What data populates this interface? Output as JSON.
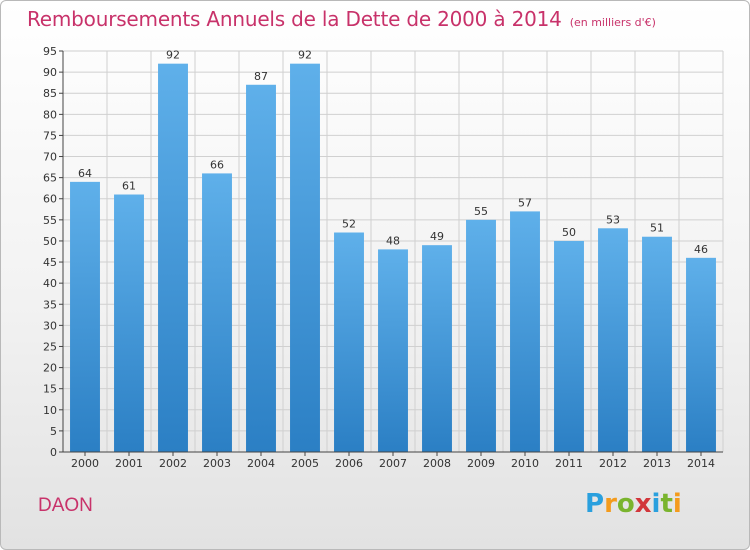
{
  "title": "Remboursements Annuels de la Dette de 2000 à 2014",
  "subtitle": "(en milliers d'€)",
  "place": "DAON",
  "logo": {
    "letters": [
      "P",
      "r",
      "o",
      "x",
      "i",
      "t",
      "i"
    ],
    "colors": [
      "#2aa0de",
      "#f49b1c",
      "#7ab42e",
      "#d2363b",
      "#2aa0de",
      "#7ab42e",
      "#f49b1c"
    ]
  },
  "colors": {
    "title": "#c8326a",
    "bar_top": "#5fb0ea",
    "bar_bottom": "#2b7fc4",
    "grid": "#d0d0d0",
    "axis": "#444444"
  },
  "chart_data": {
    "type": "bar",
    "title": "Remboursements Annuels de la Dette de 2000 à 2014",
    "subtitle": "(en milliers d'€)",
    "categories": [
      "2000",
      "2001",
      "2002",
      "2003",
      "2004",
      "2005",
      "2006",
      "2007",
      "2008",
      "2009",
      "2010",
      "2011",
      "2012",
      "2013",
      "2014"
    ],
    "values": [
      64,
      61,
      92,
      66,
      87,
      92,
      52,
      48,
      49,
      55,
      57,
      50,
      53,
      51,
      46
    ],
    "ylim": [
      0,
      95
    ],
    "yticks": [
      0,
      5,
      10,
      15,
      20,
      25,
      30,
      35,
      40,
      45,
      50,
      55,
      60,
      65,
      70,
      75,
      80,
      85,
      90,
      95
    ],
    "grid": true,
    "legend": "none"
  }
}
